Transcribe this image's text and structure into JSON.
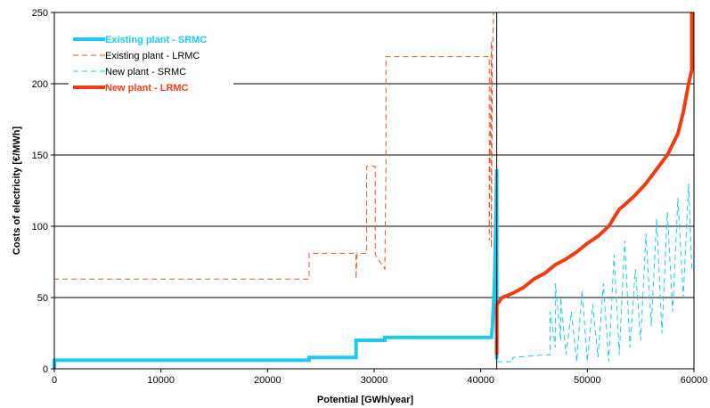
{
  "chart_data": {
    "type": "line",
    "title": "",
    "xlabel": "Potential [GWh/year]",
    "ylabel": "Costs of electricity [€/MWh]",
    "xlim": [
      0,
      60000
    ],
    "ylim": [
      0,
      250
    ],
    "xticks": [
      "0",
      "10000",
      "20000",
      "30000",
      "40000",
      "50000",
      "60000"
    ],
    "yticks": [
      "0",
      "50",
      "100",
      "150",
      "200",
      "250"
    ],
    "grid": "horizontal",
    "legend_position": "top-left",
    "vline_x": 41500,
    "series": [
      {
        "name": "Existing plant - SRMC",
        "color": "#1ec8f0",
        "style": "solid-thick",
        "x": [
          0,
          0,
          23900,
          23900,
          28300,
          28300,
          31000,
          31000,
          41000,
          41100,
          41300,
          41400,
          41500,
          41500,
          41650
        ],
        "y": [
          0,
          6,
          6,
          8,
          8,
          20,
          20,
          22,
          22,
          30,
          60,
          100,
          140,
          8,
          8
        ]
      },
      {
        "name": "Existing plant - LRMC",
        "color": "#e8502a",
        "style": "dashed-thin",
        "x": [
          0,
          0,
          23900,
          23900,
          28300,
          28300,
          28400,
          29300,
          29300,
          30100,
          30100,
          31000,
          31100,
          31100,
          40800,
          40800,
          41000,
          41000,
          41100,
          41200,
          41400
        ],
        "y": [
          0,
          63,
          63,
          81,
          81,
          63,
          81,
          81,
          142,
          142,
          80,
          70,
          140,
          219,
          219,
          90,
          230,
          85,
          220,
          250,
          250
        ]
      },
      {
        "name": "New plant - SRMC",
        "color": "#1ec8f0",
        "style": "dashed-thin",
        "x": [
          41500,
          43000,
          43000,
          46500,
          46500,
          47000,
          47000,
          47500,
          47500,
          48000,
          48500,
          49000,
          49500,
          50000,
          50500,
          51000,
          51500,
          52000,
          52500,
          53000,
          53500,
          54000,
          54500,
          55000,
          55500,
          56000,
          56500,
          57000,
          57500,
          58000,
          58500,
          59000,
          59500,
          59800
        ],
        "y": [
          5,
          5,
          8,
          10,
          40,
          15,
          60,
          20,
          50,
          10,
          40,
          5,
          55,
          5,
          45,
          8,
          60,
          5,
          80,
          10,
          90,
          15,
          70,
          20,
          95,
          30,
          105,
          25,
          110,
          40,
          120,
          50,
          130,
          70
        ]
      },
      {
        "name": "New plant - LRMC",
        "color": "#f03c14",
        "style": "solid-thick",
        "x": [
          41500,
          41500,
          42000,
          43000,
          44000,
          45000,
          46000,
          47000,
          48000,
          49000,
          50000,
          51000,
          52000,
          53000,
          53500,
          54500,
          55500,
          56500,
          57500,
          58500,
          59000,
          59500,
          59800,
          59800
        ],
        "y": [
          10,
          45,
          50,
          53,
          57,
          63,
          67,
          73,
          77,
          82,
          88,
          93,
          100,
          112,
          115,
          122,
          130,
          140,
          150,
          165,
          180,
          200,
          210,
          250
        ]
      }
    ]
  }
}
